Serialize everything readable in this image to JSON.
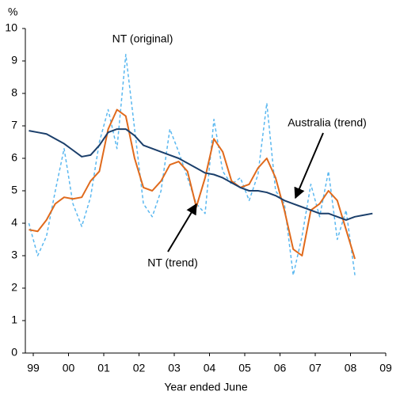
{
  "chart_data": {
    "type": "line",
    "y_label": "%",
    "x_label": "Year ended June",
    "x": [
      1998.875,
      1999.125,
      1999.375,
      1999.625,
      1999.875,
      2000.125,
      2000.375,
      2000.625,
      2000.875,
      2001.125,
      2001.375,
      2001.625,
      2001.875,
      2002.125,
      2002.375,
      2002.625,
      2002.875,
      2003.125,
      2003.375,
      2003.625,
      2003.875,
      2004.125,
      2004.375,
      2004.625,
      2004.875,
      2005.125,
      2005.375,
      2005.625,
      2005.875,
      2006.125,
      2006.375,
      2006.625,
      2006.875,
      2007.125,
      2007.375,
      2007.625,
      2007.875,
      2008.125,
      2008.375,
      2008.625
    ],
    "series": [
      {
        "name": "NT (original)",
        "color": "#5bb8f0",
        "dashed": true,
        "values": [
          4.0,
          3.0,
          3.6,
          5.0,
          6.3,
          4.6,
          3.9,
          4.8,
          6.5,
          7.5,
          6.3,
          9.2,
          6.9,
          4.6,
          4.2,
          5.0,
          6.9,
          6.2,
          5.4,
          4.6,
          4.3,
          7.2,
          5.6,
          5.2,
          5.4,
          4.7,
          5.5,
          7.7,
          5.0,
          4.6,
          2.4,
          3.6,
          5.2,
          4.2,
          5.6,
          3.5,
          4.4,
          2.4,
          null,
          null
        ]
      },
      {
        "name": "NT (trend)",
        "color": "#e06a1c",
        "values": [
          3.8,
          3.75,
          4.1,
          4.6,
          4.8,
          4.75,
          4.8,
          5.3,
          5.6,
          6.9,
          7.5,
          7.3,
          6.0,
          5.1,
          5.0,
          5.3,
          5.8,
          5.9,
          5.6,
          4.5,
          5.4,
          6.6,
          6.2,
          5.3,
          5.1,
          5.2,
          5.7,
          6.0,
          5.4,
          4.4,
          3.2,
          3.0,
          4.4,
          4.6,
          5.0,
          4.7,
          3.8,
          2.9,
          null,
          null
        ]
      },
      {
        "name": "Australia (trend)",
        "color": "#1b3f6b",
        "values": [
          6.85,
          6.8,
          6.75,
          6.6,
          6.45,
          6.25,
          6.05,
          6.1,
          6.4,
          6.8,
          6.9,
          6.9,
          6.7,
          6.4,
          6.3,
          6.2,
          6.1,
          6.0,
          5.85,
          5.7,
          5.55,
          5.5,
          5.4,
          5.25,
          5.1,
          5.0,
          5.0,
          4.95,
          4.85,
          4.7,
          4.6,
          4.5,
          4.4,
          4.3,
          4.3,
          4.2,
          4.1,
          4.2,
          4.25,
          4.3
        ]
      }
    ],
    "xlim": [
      1998.775,
      2009.0
    ],
    "xticks": [
      {
        "value": 1999,
        "label": "99"
      },
      {
        "value": 2000,
        "label": "00"
      },
      {
        "value": 2001,
        "label": "01"
      },
      {
        "value": 2002,
        "label": "02"
      },
      {
        "value": 2003,
        "label": "03"
      },
      {
        "value": 2004,
        "label": "04"
      },
      {
        "value": 2005,
        "label": "05"
      },
      {
        "value": 2006,
        "label": "06"
      },
      {
        "value": 2007,
        "label": "07"
      },
      {
        "value": 2008,
        "label": "08"
      },
      {
        "value": 2009,
        "label": "09"
      }
    ],
    "ylim": [
      0,
      10
    ],
    "yticks": [
      0,
      1,
      2,
      3,
      4,
      5,
      6,
      7,
      8,
      9,
      10
    ],
    "grid": false
  }
}
